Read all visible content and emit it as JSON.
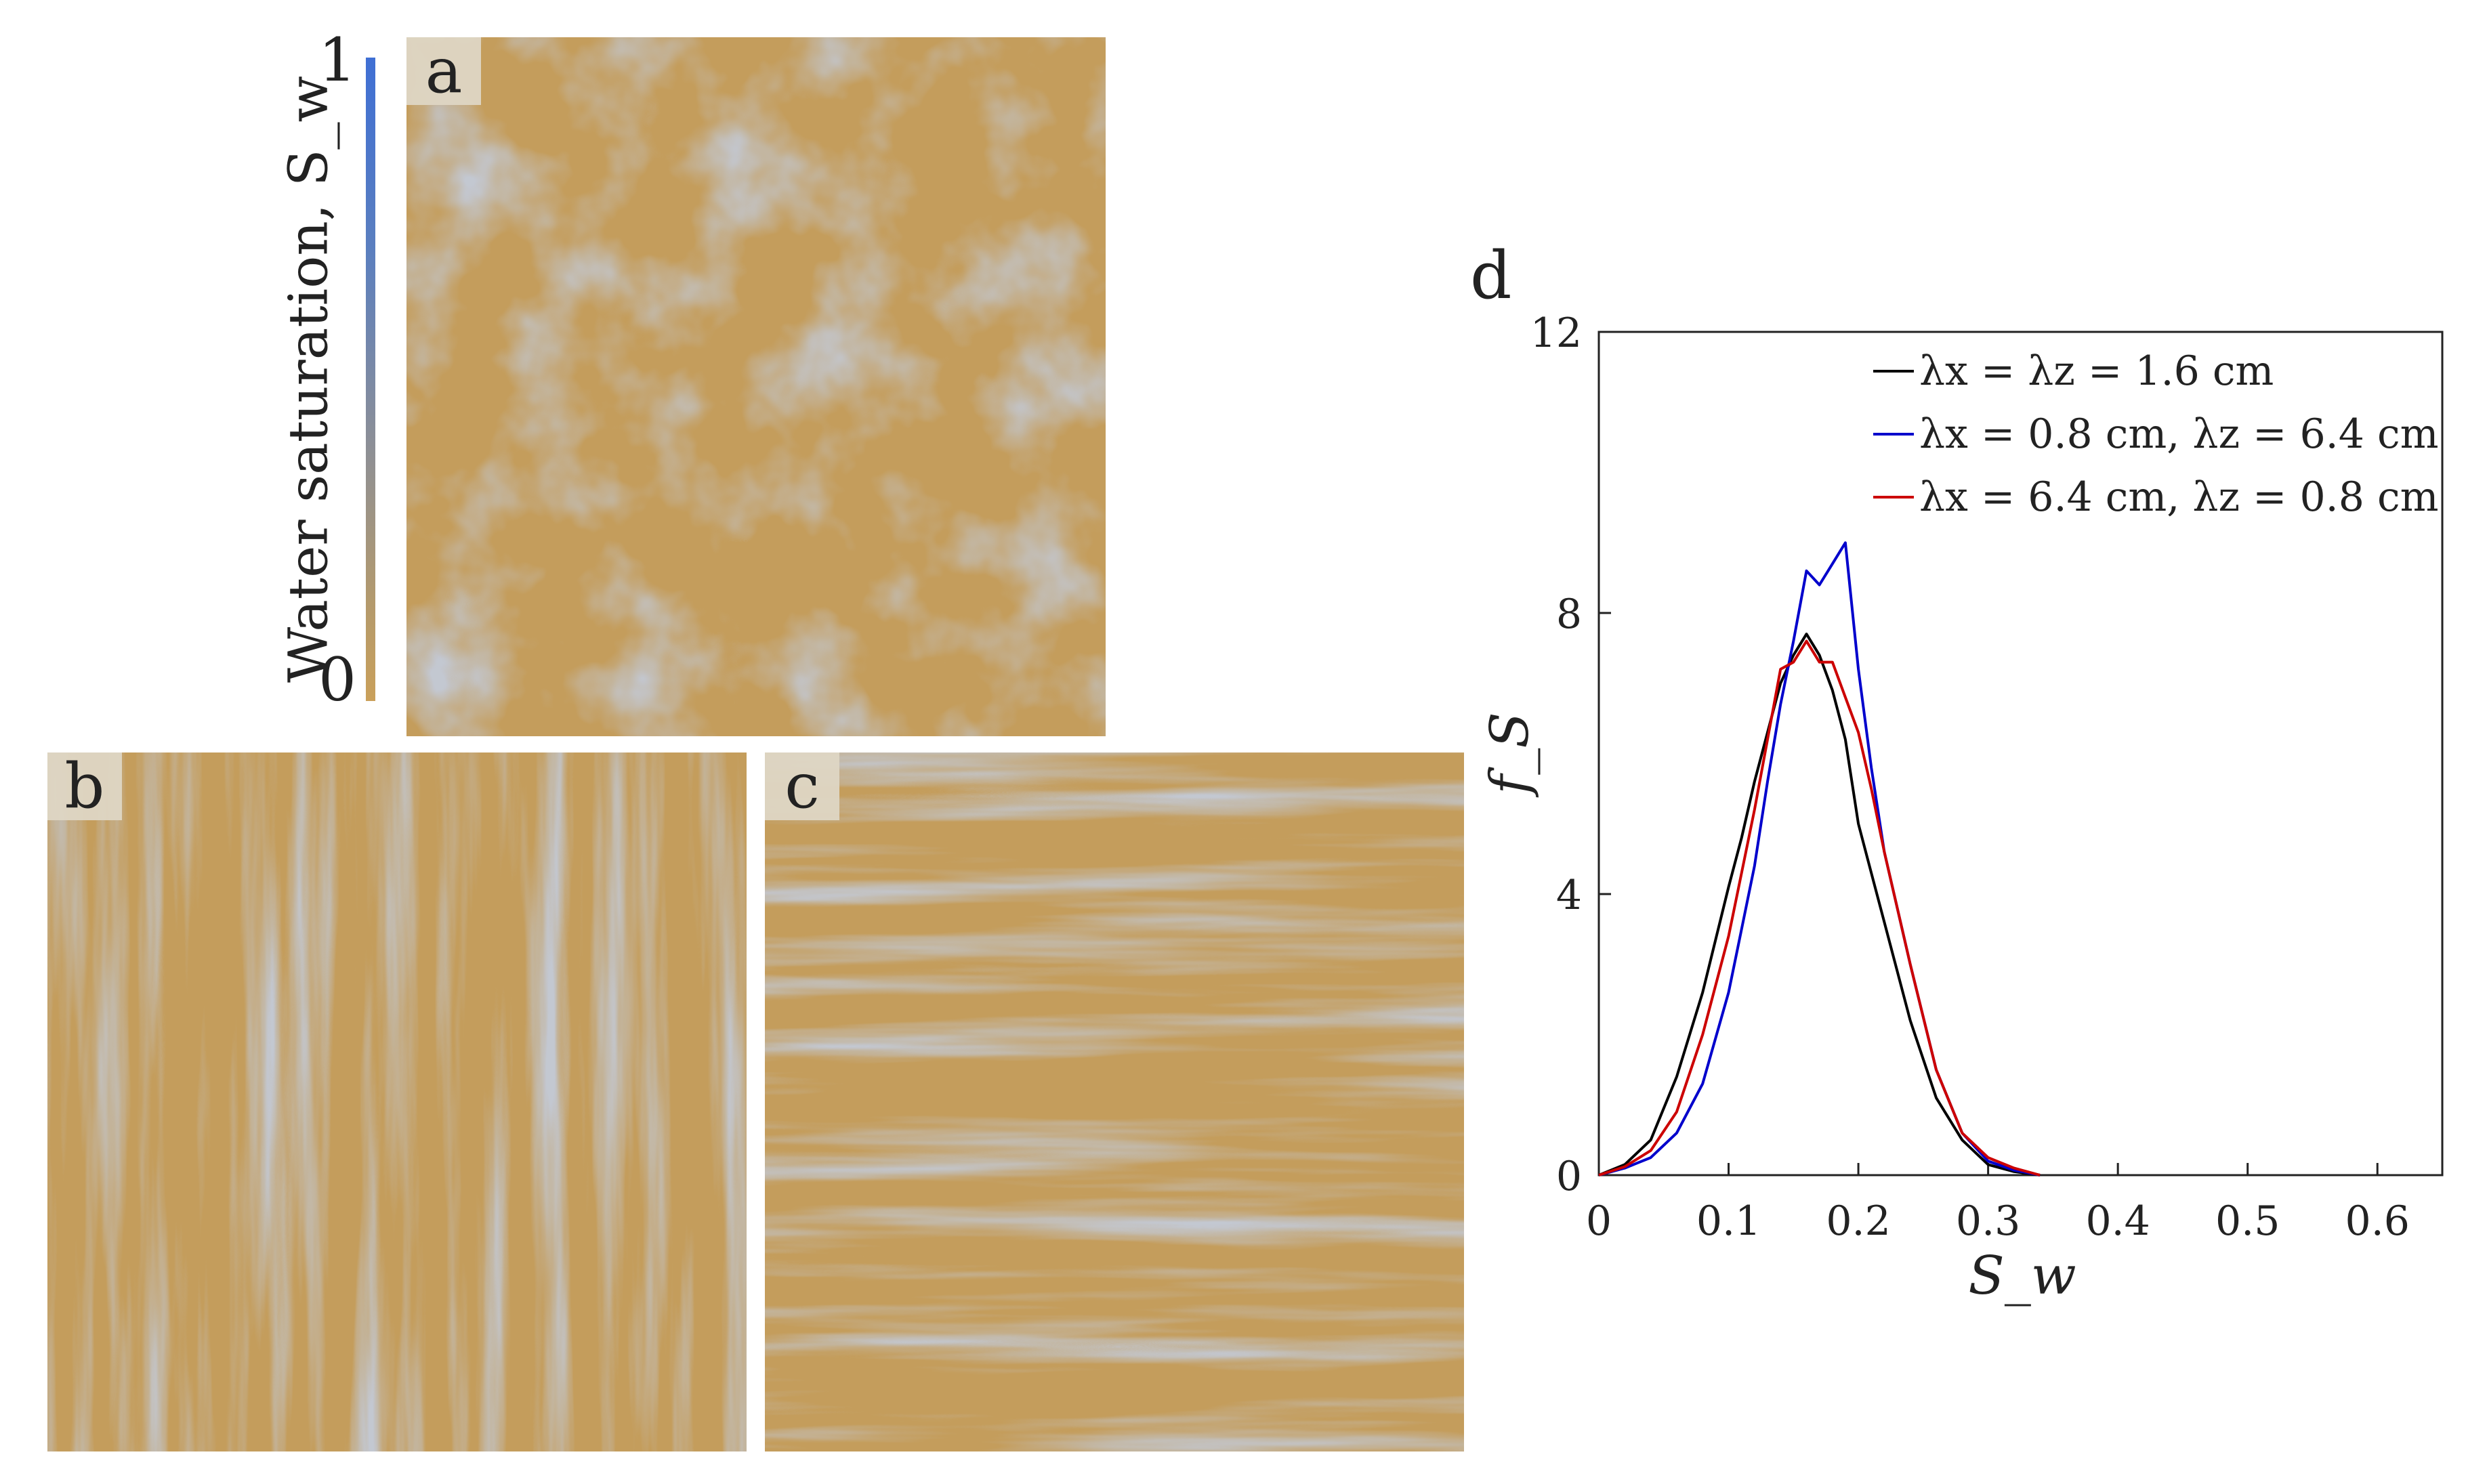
{
  "colorbar": {
    "label": "Water saturation, S_w",
    "tick_max": "1",
    "tick_min": "0"
  },
  "panels": {
    "a_label": "a",
    "b_label": "b",
    "c_label": "c"
  },
  "chart_data": {
    "type": "line",
    "panel_label": "d",
    "xlabel": "S_w",
    "ylabel": "f_S",
    "xlim": [
      0,
      0.65
    ],
    "ylim": [
      0,
      12
    ],
    "xticks": [
      "0",
      "0.1",
      "0.2",
      "0.3",
      "0.4",
      "0.5",
      "0.6"
    ],
    "yticks": [
      "0",
      "4",
      "8",
      "12"
    ],
    "legend_position": "top-right",
    "series": [
      {
        "name": "λx = λz = 1.6 cm",
        "color": "#000000",
        "x": [
          0,
          0.02,
          0.04,
          0.06,
          0.08,
          0.1,
          0.11,
          0.12,
          0.13,
          0.14,
          0.15,
          0.16,
          0.17,
          0.18,
          0.19,
          0.2,
          0.21,
          0.22,
          0.24,
          0.26,
          0.28,
          0.3,
          0.32,
          0.34
        ],
        "values": [
          0,
          0.15,
          0.5,
          1.4,
          2.6,
          4.1,
          4.8,
          5.6,
          6.3,
          7.0,
          7.4,
          7.7,
          7.4,
          6.9,
          6.2,
          5.0,
          4.3,
          3.6,
          2.2,
          1.1,
          0.5,
          0.15,
          0.05,
          0
        ]
      },
      {
        "name": "λx = 0.8 cm, λz = 6.4 cm",
        "color": "#0000cc",
        "x": [
          0,
          0.02,
          0.04,
          0.06,
          0.08,
          0.1,
          0.11,
          0.12,
          0.13,
          0.14,
          0.15,
          0.16,
          0.17,
          0.18,
          0.19,
          0.2,
          0.21,
          0.22,
          0.24,
          0.26,
          0.28,
          0.3,
          0.32,
          0.34
        ],
        "values": [
          0,
          0.1,
          0.25,
          0.6,
          1.3,
          2.6,
          3.5,
          4.4,
          5.6,
          6.7,
          7.6,
          8.6,
          8.4,
          8.7,
          9.0,
          7.2,
          5.8,
          4.6,
          3.0,
          1.5,
          0.6,
          0.2,
          0.07,
          0
        ]
      },
      {
        "name": "λx = 6.4 cm, λz = 0.8 cm",
        "color": "#cc0000",
        "x": [
          0,
          0.02,
          0.04,
          0.06,
          0.08,
          0.1,
          0.11,
          0.12,
          0.13,
          0.14,
          0.15,
          0.16,
          0.17,
          0.18,
          0.19,
          0.2,
          0.21,
          0.22,
          0.24,
          0.26,
          0.28,
          0.3,
          0.32,
          0.34
        ],
        "values": [
          0,
          0.12,
          0.35,
          0.9,
          2.0,
          3.4,
          4.3,
          5.2,
          6.2,
          7.2,
          7.3,
          7.6,
          7.3,
          7.3,
          6.8,
          6.3,
          5.5,
          4.6,
          3.0,
          1.5,
          0.6,
          0.25,
          0.1,
          0
        ]
      }
    ]
  }
}
